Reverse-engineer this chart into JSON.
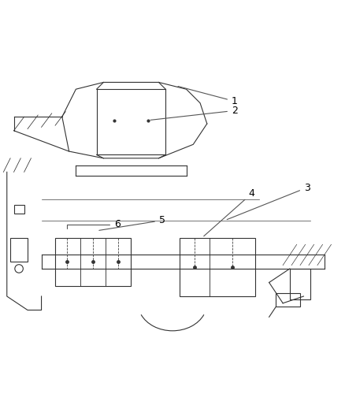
{
  "background_color": "#ffffff",
  "figure_width": 4.38,
  "figure_height": 5.33,
  "dpi": 100,
  "line_color": "#333333",
  "label_color": "#000000",
  "label_fontsize": 9,
  "leader_line_color": "#555555"
}
